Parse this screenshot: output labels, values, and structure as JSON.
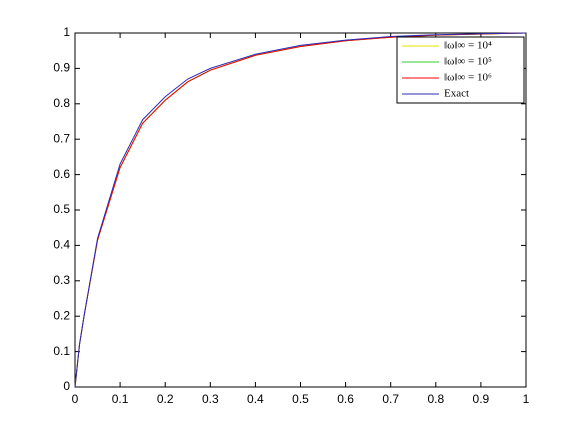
{
  "chart_data": {
    "type": "line",
    "x": [
      0,
      0.01,
      0.02,
      0.05,
      0.1,
      0.15,
      0.2,
      0.25,
      0.3,
      0.4,
      0.5,
      0.6,
      0.7,
      0.8,
      0.9,
      1
    ],
    "series": [
      {
        "name": "‖ω‖∞ = 10⁴",
        "color": "#e6e600",
        "values": [
          0,
          0.12,
          0.2,
          0.415,
          0.62,
          0.745,
          0.81,
          0.862,
          0.895,
          0.937,
          0.962,
          0.978,
          0.988,
          0.994,
          0.997,
          1
        ]
      },
      {
        "name": "‖ω‖∞ = 10⁵",
        "color": "#33cc33",
        "values": [
          0,
          0.12,
          0.2,
          0.415,
          0.62,
          0.745,
          0.81,
          0.862,
          0.895,
          0.937,
          0.962,
          0.978,
          0.988,
          0.994,
          0.997,
          1
        ]
      },
      {
        "name": "‖ω‖∞ = 10⁶",
        "color": "#ff0000",
        "values": [
          0,
          0.12,
          0.2,
          0.415,
          0.62,
          0.745,
          0.81,
          0.862,
          0.895,
          0.937,
          0.962,
          0.978,
          0.988,
          0.994,
          0.997,
          1
        ]
      },
      {
        "name": "Exact",
        "color": "#2b2bb8",
        "values": [
          0,
          0.12,
          0.2,
          0.42,
          0.63,
          0.755,
          0.82,
          0.87,
          0.9,
          0.94,
          0.965,
          0.98,
          0.99,
          0.995,
          0.998,
          1
        ]
      }
    ],
    "xlim": [
      0,
      1
    ],
    "ylim": [
      0,
      1
    ],
    "xticks": [
      0,
      0.1,
      0.2,
      0.3,
      0.4,
      0.5,
      0.6,
      0.7,
      0.8,
      0.9,
      1
    ],
    "yticks": [
      0,
      0.1,
      0.2,
      0.3,
      0.4,
      0.5,
      0.6,
      0.7,
      0.8,
      0.9,
      1
    ],
    "legend": "upper-right"
  }
}
